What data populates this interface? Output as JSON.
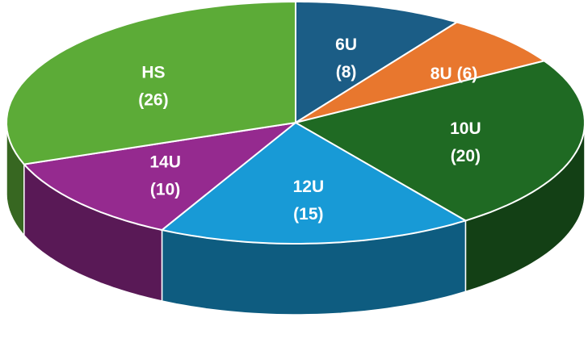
{
  "chart_data": {
    "type": "pie",
    "categories": [
      "6U",
      "8U",
      "10U",
      "12U",
      "14U",
      "HS"
    ],
    "values": [
      8,
      6,
      20,
      15,
      10,
      26
    ],
    "value_labels": [
      "(8)",
      "(6)",
      "(20)",
      "(15)",
      "(10)",
      "(26)"
    ],
    "colors": [
      "#1b5d86",
      "#e8772e",
      "#1f6a23",
      "#189ad6",
      "#952a8f",
      "#5cab37"
    ]
  }
}
